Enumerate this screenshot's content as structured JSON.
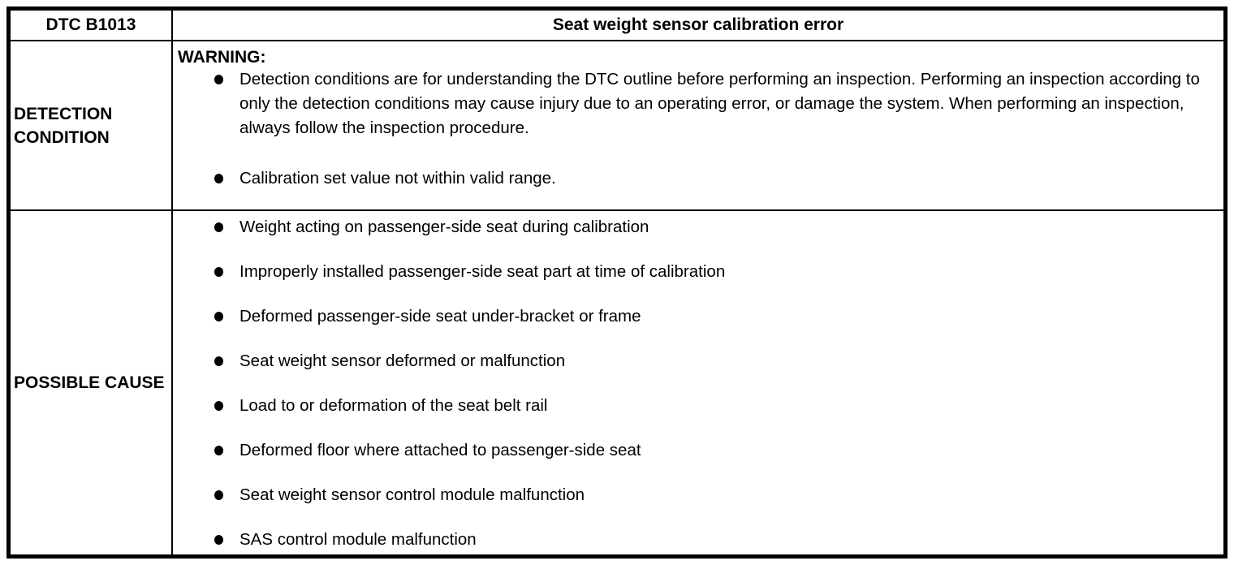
{
  "colors": {
    "text": "#000000",
    "background": "#ffffff",
    "border": "#000000"
  },
  "table": {
    "header": {
      "code": "DTC B1013",
      "title": "Seat weight sensor calibration error"
    },
    "detection": {
      "label": "DETECTION CONDITION",
      "warning_label": "WARNING:",
      "bullets": [
        "Detection conditions are for understanding the DTC outline before performing an inspection. Performing an inspection according to only the detection conditions may cause injury due to an operating error, or damage the system. When performing an inspection, always follow the inspection procedure.",
        "Calibration set value not within valid range."
      ]
    },
    "possible_cause": {
      "label": "POSSIBLE CAUSE",
      "bullets": [
        "Weight acting on passenger-side seat during calibration",
        "Improperly installed passenger-side seat part at time of calibration",
        "Deformed passenger-side seat under-bracket or frame",
        "Seat weight sensor deformed or malfunction",
        "Load to or deformation of the seat belt rail",
        "Deformed floor where attached to passenger-side seat",
        "Seat weight sensor control module malfunction",
        "SAS control module malfunction"
      ]
    }
  }
}
